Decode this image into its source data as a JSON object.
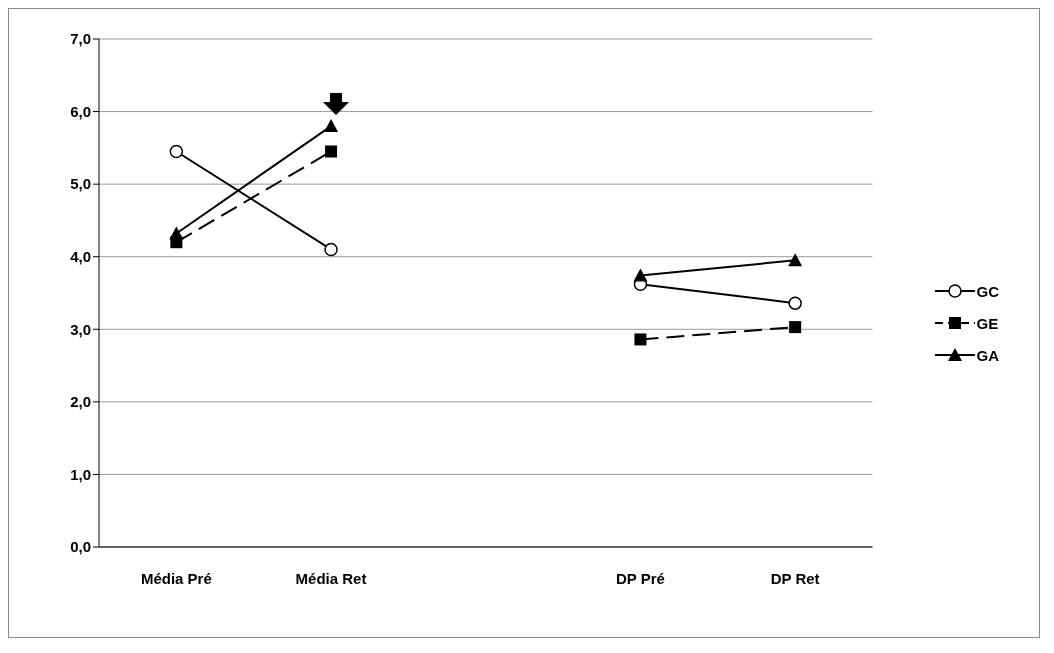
{
  "chart_data": {
    "type": "line",
    "categories": [
      "Média Pré",
      "Média Ret",
      null,
      "DP Pré",
      "DP Ret"
    ],
    "series": [
      {
        "name": "GC",
        "color": "#000000",
        "marker": "circle",
        "line_style": "solid",
        "values": [
          5.45,
          4.1,
          null,
          3.62,
          3.36
        ]
      },
      {
        "name": "GE",
        "color": "#000000",
        "marker": "square",
        "line_style": "dashed",
        "values": [
          4.2,
          5.45,
          null,
          2.86,
          3.03
        ]
      },
      {
        "name": "GA",
        "color": "#000000",
        "marker": "triangle",
        "line_style": "solid",
        "values": [
          4.32,
          5.8,
          null,
          3.74,
          3.95
        ]
      }
    ],
    "ylim": [
      0,
      7
    ],
    "yticks": [
      {
        "value": 0,
        "label": "0,0"
      },
      {
        "value": 1,
        "label": "1,0"
      },
      {
        "value": 2,
        "label": "2,0"
      },
      {
        "value": 3,
        "label": "3,0"
      },
      {
        "value": 4,
        "label": "4,0"
      },
      {
        "value": 5,
        "label": "5,0"
      },
      {
        "value": 6,
        "label": "6,0"
      },
      {
        "value": 7,
        "label": "7,0"
      }
    ],
    "grid": "y",
    "legend": "right"
  }
}
